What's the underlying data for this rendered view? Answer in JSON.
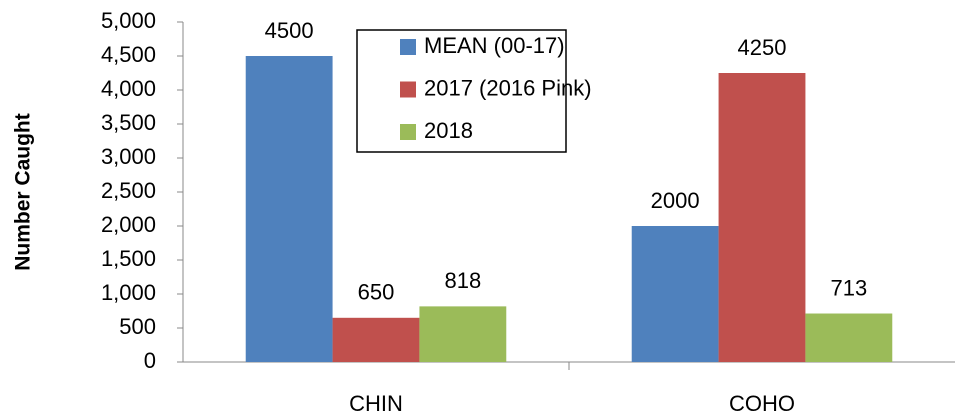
{
  "chart_data": {
    "type": "bar",
    "y_label": "Number Caught",
    "categories": [
      "CHIN",
      "COHO"
    ],
    "series": [
      {
        "name": "MEAN (00-17)",
        "color": "#4f81bd",
        "values": [
          4500,
          2000
        ]
      },
      {
        "name": "2017 (2016 Pink)",
        "color": "#c0504d",
        "values": [
          650,
          4250
        ]
      },
      {
        "name": "2018",
        "color": "#9bbb59",
        "values": [
          818,
          713
        ]
      }
    ],
    "ylim": [
      0,
      5000
    ],
    "yticks": [
      0,
      500,
      {
        "value": 1000,
        "label": "1,000"
      },
      {
        "value": 1500,
        "label": "1,500"
      },
      {
        "value": 2000,
        "label": "2,000"
      },
      {
        "value": 2500,
        "label": "2,500"
      },
      {
        "value": 3000,
        "label": "3,000"
      },
      {
        "value": 3500,
        "label": "3,500"
      },
      {
        "value": 4000,
        "label": "4,000"
      },
      {
        "value": 4500,
        "label": "4,500"
      },
      {
        "value": 5000,
        "label": "5,000"
      }
    ],
    "grid": false,
    "legend": "top"
  }
}
